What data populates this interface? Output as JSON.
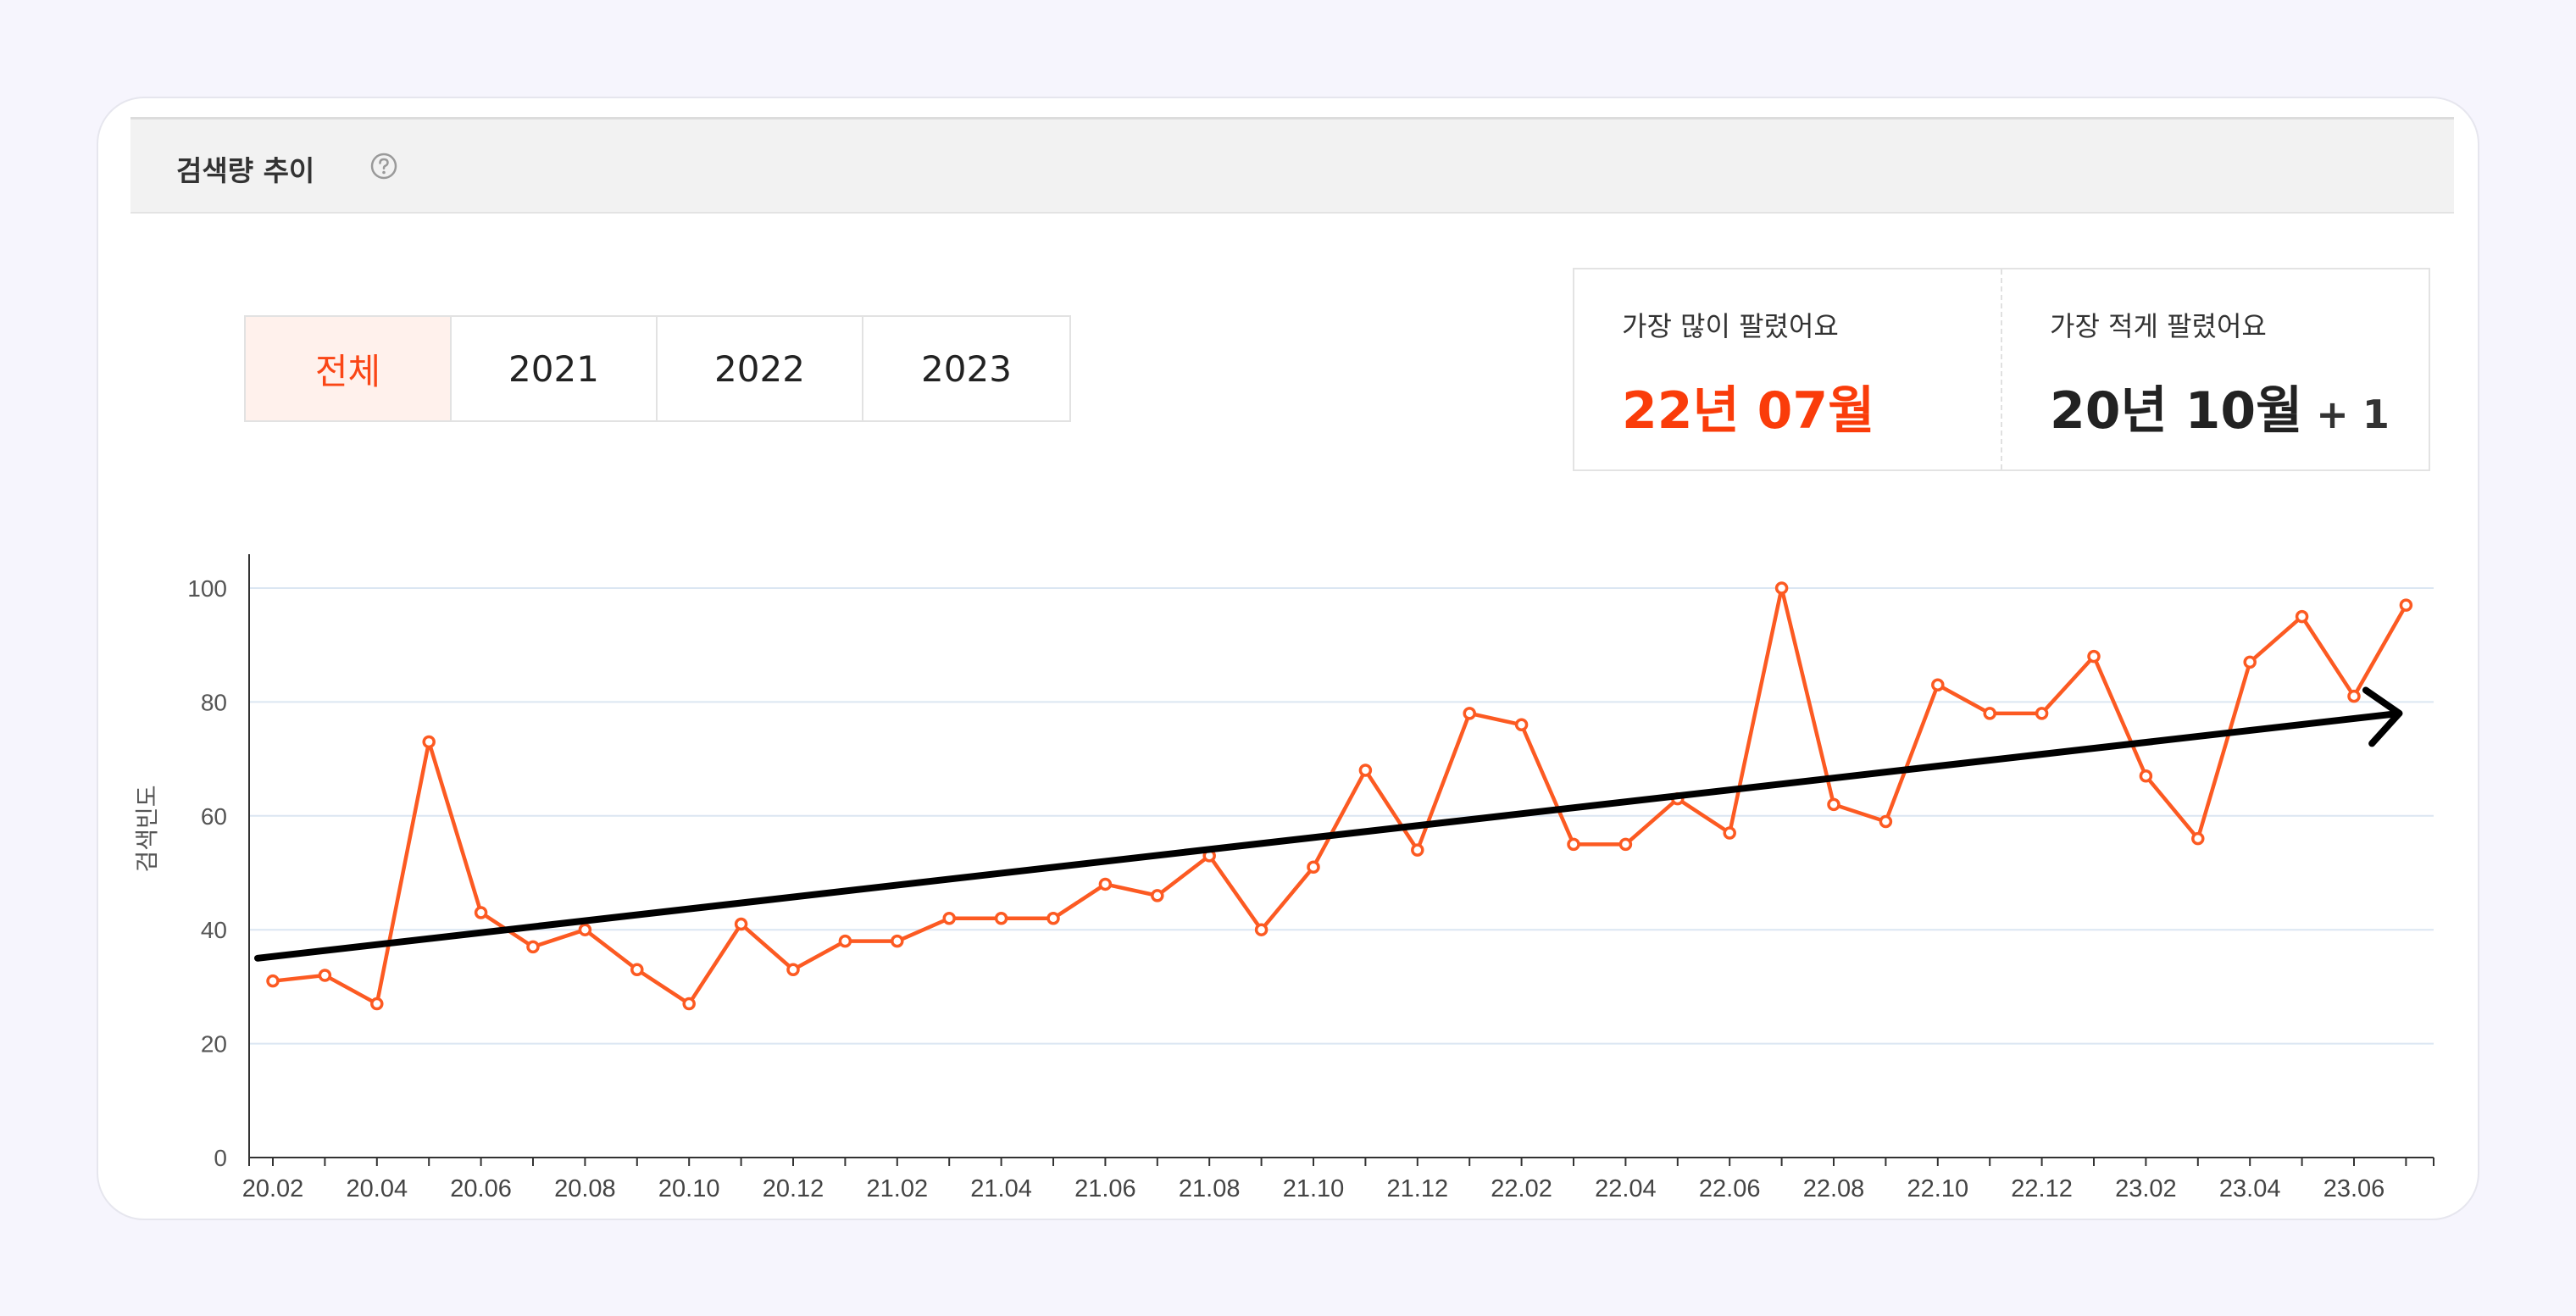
{
  "header": {
    "title": "검색량 추이",
    "help_icon": "question-circle-icon"
  },
  "tabs": [
    {
      "label": "전체",
      "active": true
    },
    {
      "label": "2021",
      "active": false
    },
    {
      "label": "2022",
      "active": false
    },
    {
      "label": "2023",
      "active": false
    }
  ],
  "stats": {
    "most": {
      "label": "가장 많이 팔렸어요",
      "value": "22년 07월"
    },
    "least": {
      "label": "가장 적게 팔렸어요",
      "value": "20년 10월",
      "extra": "+ 1"
    }
  },
  "colors": {
    "accent": "#fa4616",
    "line": "#fc5a22",
    "grid": "#dbe6f2",
    "trend": "#000000"
  },
  "chart_data": {
    "type": "line",
    "ylabel": "검색빈도",
    "ylim": [
      0,
      100
    ],
    "yticks": [
      0,
      20,
      40,
      60,
      80,
      100
    ],
    "xtick_labels": [
      "20.02",
      "20.04",
      "20.06",
      "20.08",
      "20.10",
      "20.12",
      "21.02",
      "21.04",
      "21.06",
      "21.08",
      "21.10",
      "21.12",
      "22.02",
      "22.04",
      "22.06",
      "22.08",
      "22.10",
      "22.12",
      "23.02",
      "23.04",
      "23.06"
    ],
    "x": [
      "20.02",
      "20.03",
      "20.04",
      "20.05",
      "20.06",
      "20.07",
      "20.08",
      "20.09",
      "20.10",
      "20.11",
      "20.12",
      "21.01",
      "21.02",
      "21.03",
      "21.04",
      "21.05",
      "21.06",
      "21.07",
      "21.08",
      "21.09",
      "21.10",
      "21.11",
      "21.12",
      "22.01",
      "22.02",
      "22.03",
      "22.04",
      "22.05",
      "22.06",
      "22.07",
      "22.08",
      "22.09",
      "22.10",
      "22.11",
      "22.12",
      "23.01",
      "23.02",
      "23.03",
      "23.04",
      "23.05",
      "23.06",
      "23.07"
    ],
    "series": [
      {
        "values": [
          31,
          32,
          27,
          73,
          43,
          37,
          40,
          33,
          27,
          41,
          33,
          38,
          38,
          42,
          42,
          42,
          48,
          46,
          53,
          40,
          51,
          68,
          54,
          78,
          76,
          55,
          55,
          63,
          57,
          100,
          62,
          59,
          83,
          78,
          78,
          88,
          67,
          56,
          87,
          95,
          81,
          97
        ]
      }
    ],
    "annotations": [
      {
        "type": "trend-arrow",
        "from": {
          "x": "20.02",
          "y": 35
        },
        "to": {
          "x": "23.07",
          "y": 78
        }
      }
    ],
    "grid": true
  }
}
